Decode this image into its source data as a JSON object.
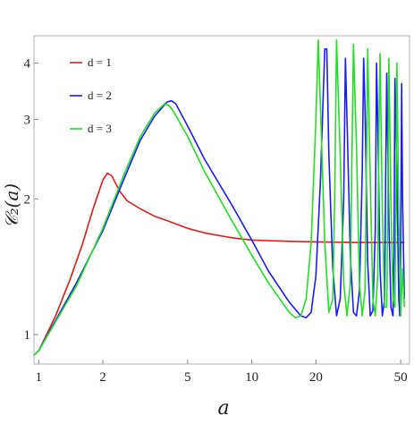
{
  "chart_data": {
    "type": "line",
    "xlabel": "a",
    "ylabel": "𝒞₂(a)",
    "xscale": "log",
    "yscale": "log",
    "xlim": [
      0.95,
      55
    ],
    "ylim": [
      0.86,
      4.6
    ],
    "xticks": [
      1,
      2,
      5,
      10,
      20,
      50
    ],
    "yticks": [
      1,
      2,
      3,
      4
    ],
    "legend_position": "top-left",
    "grid": false,
    "series": [
      {
        "name": "d = 1",
        "color": "#e31a1c",
        "x": [
          0.95,
          1.0,
          1.2,
          1.4,
          1.6,
          1.8,
          2.0,
          2.1,
          2.2,
          2.4,
          2.6,
          3.0,
          3.5,
          4.0,
          5.0,
          6.0,
          8.0,
          10.0,
          15.0,
          20.0,
          30.0,
          50.0,
          52.0
        ],
        "y": [
          0.9,
          0.92,
          1.1,
          1.32,
          1.58,
          1.9,
          2.2,
          2.28,
          2.25,
          2.08,
          1.98,
          1.9,
          1.83,
          1.79,
          1.72,
          1.68,
          1.64,
          1.62,
          1.61,
          1.605,
          1.6,
          1.6,
          1.6
        ]
      },
      {
        "name": "d = 2",
        "color": "#1a1aff",
        "x": [
          0.95,
          1.0,
          1.5,
          2.0,
          2.5,
          3.0,
          3.5,
          4.0,
          4.2,
          4.4,
          5.0,
          6.0,
          8.0,
          10.0,
          12.0,
          15.0,
          17.0,
          18.0,
          19.0,
          20.0,
          21.0,
          22.0,
          22.5,
          23.0,
          24.0,
          25.0,
          26.0,
          27.0,
          27.5,
          28.0,
          29.0,
          30.0,
          31.0,
          32.0,
          33.0,
          33.5,
          34.0,
          35.0,
          36.0,
          37.0,
          38.0,
          38.5,
          39.0,
          40.0,
          41.0,
          42.0,
          42.5,
          43.0,
          44.0,
          45.0,
          46.0,
          46.5,
          47.0,
          48.0,
          49.0,
          49.5,
          50.0,
          50.5,
          51.0,
          52.0
        ],
        "y": [
          0.9,
          0.92,
          1.3,
          1.7,
          2.2,
          2.7,
          3.05,
          3.28,
          3.3,
          3.25,
          2.9,
          2.45,
          1.95,
          1.62,
          1.38,
          1.18,
          1.1,
          1.09,
          1.12,
          1.35,
          2.2,
          4.3,
          4.3,
          2.5,
          1.4,
          1.1,
          1.2,
          2.0,
          4.1,
          3.0,
          1.5,
          1.12,
          1.1,
          1.25,
          2.3,
          4.1,
          3.2,
          1.45,
          1.1,
          1.13,
          1.7,
          4.0,
          3.0,
          1.4,
          1.1,
          1.2,
          2.2,
          3.8,
          1.8,
          1.15,
          1.1,
          1.5,
          3.7,
          2.2,
          1.2,
          1.1,
          1.6,
          3.6,
          2.0,
          1.2
        ]
      },
      {
        "name": "d = 3",
        "color": "#22e022",
        "x": [
          0.95,
          1.0,
          1.5,
          2.0,
          2.5,
          3.0,
          3.5,
          3.9,
          4.1,
          4.3,
          5.0,
          6.0,
          8.0,
          10.0,
          12.0,
          15.0,
          16.0,
          17.0,
          18.0,
          19.0,
          20.0,
          20.5,
          21.0,
          22.0,
          23.0,
          24.0,
          24.5,
          25.0,
          26.0,
          27.0,
          28.0,
          29.0,
          29.5,
          30.0,
          31.0,
          32.0,
          33.0,
          34.0,
          34.5,
          35.0,
          36.0,
          37.0,
          38.0,
          39.0,
          39.5,
          40.0,
          41.0,
          42.0,
          43.0,
          43.5,
          44.0,
          45.0,
          46.0,
          47.0,
          47.5,
          48.0,
          49.0,
          50.0,
          51.0,
          52.0
        ],
        "y": [
          0.9,
          0.92,
          1.28,
          1.72,
          2.25,
          2.75,
          3.1,
          3.25,
          3.22,
          3.12,
          2.75,
          2.3,
          1.8,
          1.5,
          1.3,
          1.12,
          1.09,
          1.1,
          1.2,
          1.6,
          3.0,
          4.5,
          3.2,
          1.6,
          1.12,
          1.2,
          2.0,
          4.5,
          2.5,
          1.3,
          1.1,
          1.3,
          2.4,
          4.4,
          2.6,
          1.3,
          1.1,
          1.25,
          2.3,
          4.3,
          2.2,
          1.2,
          1.1,
          1.35,
          2.8,
          4.2,
          1.9,
          1.15,
          1.15,
          1.9,
          4.1,
          2.0,
          1.2,
          1.15,
          2.0,
          4.0,
          1.8,
          1.1,
          1.4,
          1.15
        ]
      }
    ]
  }
}
